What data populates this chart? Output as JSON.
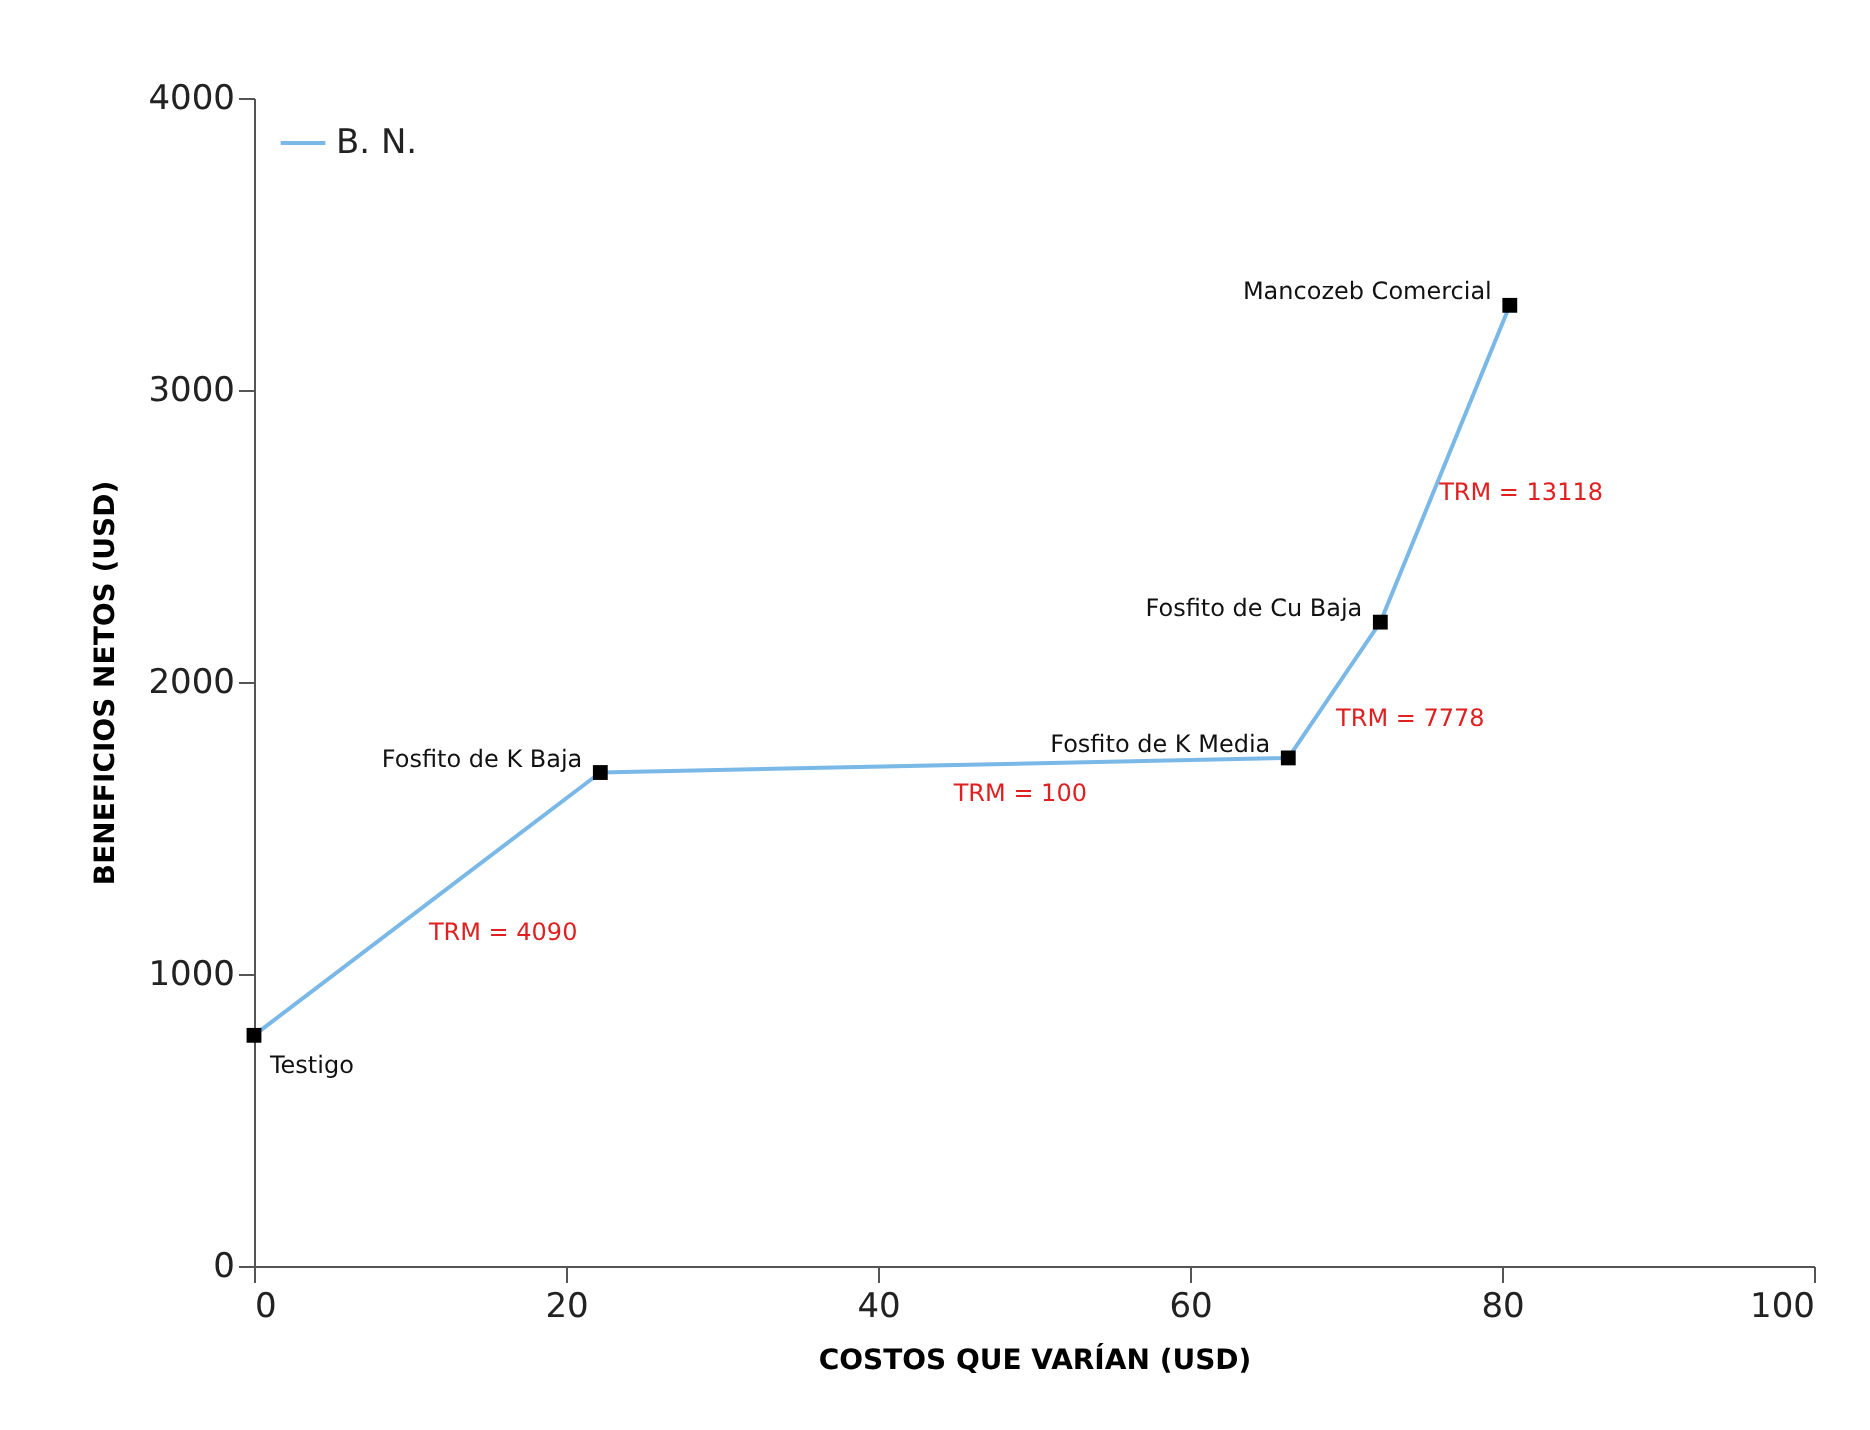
{
  "chart_data": {
    "type": "line",
    "xlabel": "COSTOS QUE VARÍAN (USD)",
    "ylabel": "BENEFICIOS NETOS (USD)",
    "x": [
      0,
      22.2,
      66.3,
      72.2,
      80.5
    ],
    "series": [
      {
        "name": "B. N.",
        "color": "#7ab8e8",
        "values": [
          790,
          1690,
          1740,
          2205,
          3290
        ],
        "value_labels": [
          "Testigo",
          "Fosfito de K Baja",
          "Fosfito de K Media",
          "Fosfito de Cu Baja",
          "Mancozeb Comercial"
        ]
      }
    ],
    "xlim": [
      0,
      100
    ],
    "xticks": [
      0,
      20,
      40,
      60,
      80,
      100
    ],
    "ylim": [
      0,
      4000
    ],
    "yticks": [
      0,
      1000,
      2000,
      3000,
      4000
    ],
    "annotations": [
      "TRM = 4090",
      "TRM = 100",
      "TRM = 7778",
      "TRM = 13118"
    ],
    "marker": "square",
    "line_style": "solid",
    "grid": false,
    "legend": "top left"
  }
}
